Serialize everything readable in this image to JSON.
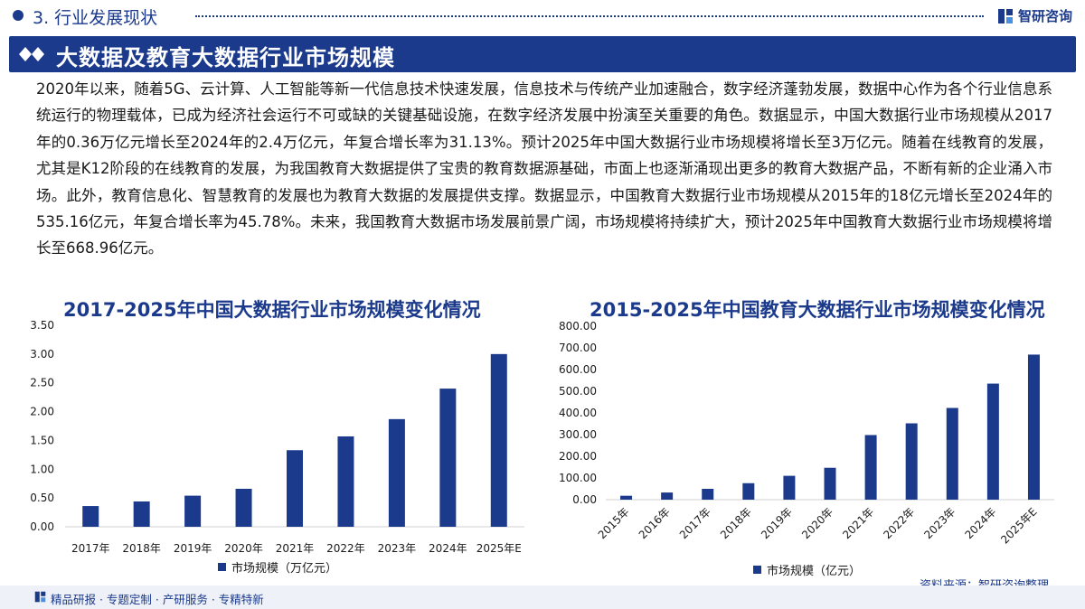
{
  "header": {
    "section_title": "3. 行业发展现状",
    "brand": "智研咨询"
  },
  "banner": {
    "title": "大数据及教育大数据行业市场规模"
  },
  "body_text": "2020年以来，随着5G、云计算、人工智能等新一代信息技术快速发展，信息技术与传统产业加速融合，数字经济蓬勃发展，数据中心作为各个行业信息系统运行的物理载体，已成为经济社会运行不可或缺的关键基础设施，在数字经济发展中扮演至关重要的角色。数据显示，中国大数据行业市场规模从2017年的0.36万亿元增长至2024年的2.4万亿元，年复合增长率为31.13%。预计2025年中国大数据行业市场规模将增长至3万亿元。随着在线教育的发展，尤其是K12阶段的在线教育的发展，为我国教育大数据提供了宝贵的教育数据源基础，市面上也逐渐涌现出更多的教育大数据产品，不断有新的企业涌入市场。此外，教育信息化、智慧教育的发展也为教育大数据的发展提供支撑。数据显示，中国教育大数据行业市场规模从2015年的18亿元增长至2024年的535.16亿元，年复合增长率为45.78%。未来，我国教育大数据市场发展前景广阔，市场规模将持续扩大，预计2025年中国教育大数据行业市场规模将增长至668.96亿元。",
  "chart_data": [
    {
      "type": "bar",
      "title": "2017-2025年中国大数据行业市场规模变化情况",
      "categories": [
        "2017年",
        "2018年",
        "2019年",
        "2020年",
        "2021年",
        "2022年",
        "2023年",
        "2024年",
        "2025年E"
      ],
      "series": [
        {
          "name": "市场规模（万亿元）",
          "values": [
            0.36,
            0.44,
            0.54,
            0.66,
            1.33,
            1.57,
            1.87,
            2.4,
            3.0
          ]
        }
      ],
      "ylim": [
        0,
        3.5
      ],
      "yticks": [
        "0.00",
        "0.50",
        "1.00",
        "1.50",
        "2.00",
        "2.50",
        "3.00",
        "3.50"
      ],
      "color": "#1b3a8c",
      "legend": "bottom"
    },
    {
      "type": "bar",
      "title": "2015-2025年中国教育大数据行业市场规模变化情况",
      "categories": [
        "2015年",
        "2016年",
        "2017年",
        "2018年",
        "2019年",
        "2020年",
        "2021年",
        "2022年",
        "2023年",
        "2024年",
        "2025年E"
      ],
      "series": [
        {
          "name": "市场规模（亿元）",
          "values": [
            18,
            33,
            50,
            76,
            110,
            147,
            298,
            352,
            423,
            535.16,
            668.96
          ]
        }
      ],
      "ylim": [
        0,
        800
      ],
      "yticks": [
        "0.00",
        "100.00",
        "200.00",
        "300.00",
        "400.00",
        "500.00",
        "600.00",
        "700.00",
        "800.00"
      ],
      "color": "#1b3a8c",
      "legend": "bottom"
    }
  ],
  "source": "资料来源：智研咨询整理",
  "footer": "精品研报 · 专题定制 · 产研服务 · 专精特新"
}
